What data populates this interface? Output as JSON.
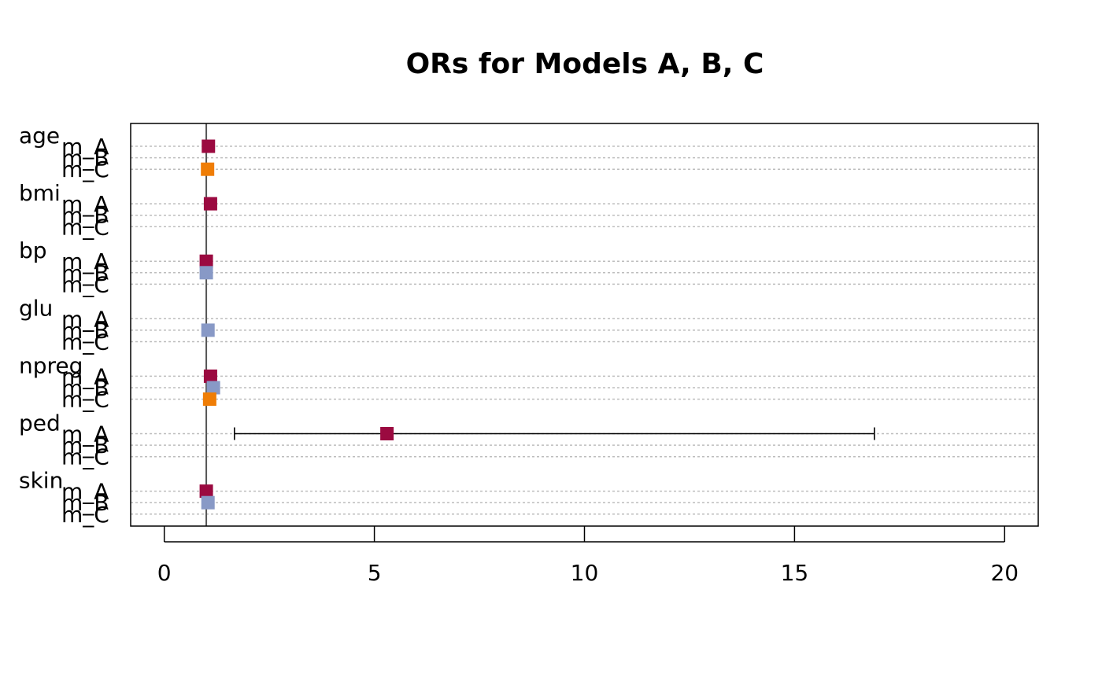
{
  "chart_data": {
    "type": "forest",
    "title": "ORs for Models A, B, C",
    "xlabel": "",
    "ylabel": "",
    "xlim": [
      -0.8,
      20.8
    ],
    "x_ticks": [
      0,
      5,
      10,
      15,
      20
    ],
    "x_tick_labels": [
      "0",
      "5",
      "10",
      "15",
      "20"
    ],
    "reference_line": 1,
    "grid": "horizontal dotted",
    "model_labels": [
      "m_A",
      "m_B",
      "m_C"
    ],
    "series_colors": {
      "m_A": "#9b0a40",
      "m_B": "#8899c6",
      "m_C": "#ef7d05"
    },
    "variables": [
      {
        "name": "age",
        "rows": [
          {
            "model": "m_A",
            "or": 1.05,
            "lo": 1.02,
            "hi": 1.09
          },
          {
            "model": "m_B",
            "or": null,
            "lo": null,
            "hi": null
          },
          {
            "model": "m_C",
            "or": 1.03,
            "lo": 1.01,
            "hi": 1.06
          }
        ]
      },
      {
        "name": "bmi",
        "rows": [
          {
            "model": "m_A",
            "or": 1.1,
            "lo": 1.04,
            "hi": 1.16
          },
          {
            "model": "m_B",
            "or": null,
            "lo": null,
            "hi": null
          },
          {
            "model": "m_C",
            "or": null,
            "lo": null,
            "hi": null
          }
        ]
      },
      {
        "name": "bp",
        "rows": [
          {
            "model": "m_A",
            "or": 1.0,
            "lo": 0.97,
            "hi": 1.02
          },
          {
            "model": "m_B",
            "or": 1.0,
            "lo": 0.98,
            "hi": 1.02
          },
          {
            "model": "m_C",
            "or": null,
            "lo": null,
            "hi": null
          }
        ]
      },
      {
        "name": "glu",
        "rows": [
          {
            "model": "m_A",
            "or": null,
            "lo": null,
            "hi": null
          },
          {
            "model": "m_B",
            "or": 1.04,
            "lo": 1.03,
            "hi": 1.05
          },
          {
            "model": "m_C",
            "or": null,
            "lo": null,
            "hi": null
          }
        ]
      },
      {
        "name": "npreg",
        "rows": [
          {
            "model": "m_A",
            "or": 1.1,
            "lo": 0.98,
            "hi": 1.22
          },
          {
            "model": "m_B",
            "or": 1.17,
            "lo": 1.06,
            "hi": 1.28
          },
          {
            "model": "m_C",
            "or": 1.08,
            "lo": 0.98,
            "hi": 1.2
          }
        ]
      },
      {
        "name": "ped",
        "rows": [
          {
            "model": "m_A",
            "or": 5.3,
            "lo": 1.67,
            "hi": 16.9
          },
          {
            "model": "m_B",
            "or": null,
            "lo": null,
            "hi": null
          },
          {
            "model": "m_C",
            "or": null,
            "lo": null,
            "hi": null
          }
        ]
      },
      {
        "name": "skin",
        "rows": [
          {
            "model": "m_A",
            "or": 1.0,
            "lo": 0.96,
            "hi": 1.05
          },
          {
            "model": "m_B",
            "or": 1.04,
            "lo": 1.0,
            "hi": 1.09
          },
          {
            "model": "m_C",
            "or": null,
            "lo": null,
            "hi": null
          }
        ]
      }
    ]
  }
}
